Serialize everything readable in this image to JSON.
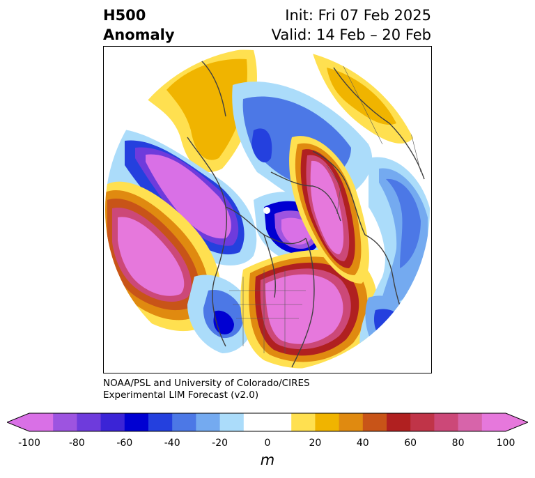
{
  "title": {
    "left_line1": "H500",
    "left_line2": "Anomaly",
    "right_line1": "Init: Fri 07 Feb 2025",
    "right_line2": "Valid: 14 Feb – 20 Feb"
  },
  "credit": {
    "line1": "NOAA/PSL and University of Colorado/CIRES",
    "line2": "Experimental LIM Forecast (v2.0)"
  },
  "colorbar": {
    "unit": "m",
    "ticks": [
      "-100",
      "-80",
      "-60",
      "-40",
      "-20",
      "0",
      "20",
      "40",
      "60",
      "80",
      "100"
    ],
    "colors": [
      "#d970e6",
      "#9d54e0",
      "#6e3bdc",
      "#3b24d6",
      "#0000d2",
      "#2440de",
      "#4c78e6",
      "#74aaf0",
      "#abdcfa",
      "#ffffff",
      "#ffffff",
      "#ffe050",
      "#f0b400",
      "#e08a10",
      "#c85418",
      "#b02020",
      "#c03448",
      "#cc4878",
      "#d764aa",
      "#e678dc"
    ]
  }
}
